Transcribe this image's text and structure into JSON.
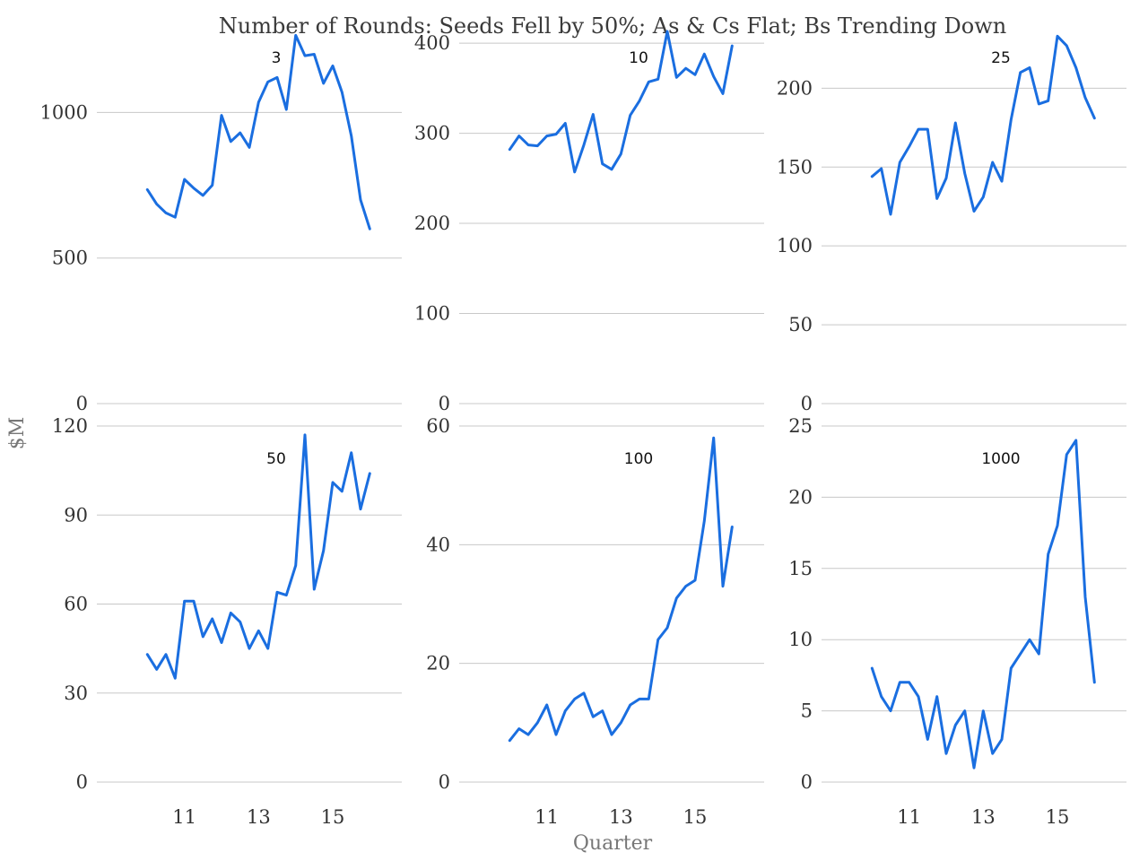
{
  "title": "Number of Rounds: Seeds Fell by 50%; As & Cs Flat; Bs Trending Down",
  "xlabel": "Quarter",
  "ylabel": "$M",
  "chart_data": [
    {
      "type": "line",
      "title": "3",
      "ylim": [
        0,
        1300
      ],
      "yticks": [
        0,
        500,
        1000
      ],
      "xlim": [
        9.0,
        16.5
      ],
      "xticks": [
        11,
        13,
        15
      ],
      "x": [
        10.0,
        10.25,
        10.5,
        10.75,
        11.0,
        11.25,
        11.5,
        11.75,
        12.0,
        12.25,
        12.5,
        12.75,
        13.0,
        13.25,
        13.5,
        13.75,
        14.0,
        14.25,
        14.5,
        14.75,
        15.0,
        15.25,
        15.5,
        15.75,
        16.0
      ],
      "values": [
        735,
        685,
        655,
        640,
        770,
        740,
        715,
        750,
        990,
        900,
        930,
        880,
        1035,
        1105,
        1120,
        1010,
        1265,
        1195,
        1200,
        1100,
        1160,
        1070,
        920,
        700,
        600
      ]
    },
    {
      "type": "line",
      "title": "10",
      "ylim": [
        0,
        420
      ],
      "yticks": [
        0,
        100,
        200,
        300,
        400
      ],
      "xlim": [
        9.0,
        16.5
      ],
      "xticks": [
        11,
        13,
        15
      ],
      "x": [
        10.0,
        10.25,
        10.5,
        10.75,
        11.0,
        11.25,
        11.5,
        11.75,
        12.0,
        12.25,
        12.5,
        12.75,
        13.0,
        13.25,
        13.5,
        13.75,
        14.0,
        14.25,
        14.5,
        14.75,
        15.0,
        15.25,
        15.5,
        15.75,
        16.0
      ],
      "values": [
        282,
        297,
        287,
        286,
        297,
        299,
        311,
        257,
        287,
        321,
        266,
        260,
        277,
        320,
        336,
        357,
        360,
        413,
        362,
        372,
        365,
        388,
        363,
        344,
        397
      ]
    },
    {
      "type": "line",
      "title": "25",
      "ylim": [
        0,
        240
      ],
      "yticks": [
        0,
        50,
        100,
        150,
        200
      ],
      "xlim": [
        9.0,
        16.5
      ],
      "xticks": [
        11,
        13,
        15
      ],
      "x": [
        10.0,
        10.25,
        10.5,
        10.75,
        11.0,
        11.25,
        11.5,
        11.75,
        12.0,
        12.25,
        12.5,
        12.75,
        13.0,
        13.25,
        13.5,
        13.75,
        14.0,
        14.25,
        14.5,
        14.75,
        15.0,
        15.25,
        15.5,
        15.75,
        16.0
      ],
      "values": [
        144,
        149,
        120,
        153,
        163,
        174,
        174,
        130,
        143,
        178,
        146,
        122,
        131,
        153,
        141,
        180,
        210,
        213,
        190,
        192,
        233,
        227,
        213,
        194,
        181
      ]
    },
    {
      "type": "line",
      "title": "50",
      "ylim": [
        0,
        120
      ],
      "yticks": [
        0,
        30,
        60,
        90,
        120
      ],
      "xlim": [
        9.0,
        16.5
      ],
      "xticks": [
        11,
        13,
        15
      ],
      "x": [
        10.0,
        10.25,
        10.5,
        10.75,
        11.0,
        11.25,
        11.5,
        11.75,
        12.0,
        12.25,
        12.5,
        12.75,
        13.0,
        13.25,
        13.5,
        13.75,
        14.0,
        14.25,
        14.5,
        14.75,
        15.0,
        15.25,
        15.5,
        15.75,
        16.0
      ],
      "values": [
        43,
        38,
        43,
        35,
        61,
        61,
        49,
        55,
        47,
        57,
        54,
        45,
        51,
        45,
        64,
        63,
        73,
        117,
        65,
        78,
        101,
        98,
        111,
        92,
        104
      ]
    },
    {
      "type": "line",
      "title": "100",
      "ylim": [
        0,
        60
      ],
      "yticks": [
        0,
        20,
        40,
        60
      ],
      "xlim": [
        9.0,
        16.5
      ],
      "xticks": [
        11,
        13,
        15
      ],
      "x": [
        10.0,
        10.25,
        10.5,
        10.75,
        11.0,
        11.25,
        11.5,
        11.75,
        12.0,
        12.25,
        12.5,
        12.75,
        13.0,
        13.25,
        13.5,
        13.75,
        14.0,
        14.25,
        14.5,
        14.75,
        15.0,
        15.25,
        15.5,
        15.75,
        16.0
      ],
      "values": [
        7,
        9,
        8,
        10,
        13,
        8,
        12,
        14,
        15,
        11,
        12,
        8,
        10,
        13,
        14,
        14,
        24,
        26,
        31,
        33,
        34,
        44,
        58,
        33,
        43
      ]
    },
    {
      "type": "line",
      "title": "1000",
      "ylim": [
        0,
        25
      ],
      "yticks": [
        0,
        5,
        10,
        15,
        20,
        25
      ],
      "xlim": [
        9.0,
        16.5
      ],
      "xticks": [
        11,
        13,
        15
      ],
      "x": [
        10.0,
        10.25,
        10.5,
        10.75,
        11.0,
        11.25,
        11.5,
        11.75,
        12.0,
        12.25,
        12.5,
        12.75,
        13.0,
        13.25,
        13.5,
        13.75,
        14.0,
        14.25,
        14.5,
        14.75,
        15.0,
        15.25,
        15.5,
        15.75,
        16.0
      ],
      "values": [
        8,
        6,
        5,
        7,
        7,
        6,
        3,
        6,
        2,
        4,
        5,
        1,
        5,
        2,
        3,
        8,
        9,
        10,
        9,
        16,
        18,
        23,
        24,
        13,
        7
      ]
    }
  ],
  "colors": {
    "series": "#1a6ee0",
    "grid": "#c8c8c8"
  }
}
